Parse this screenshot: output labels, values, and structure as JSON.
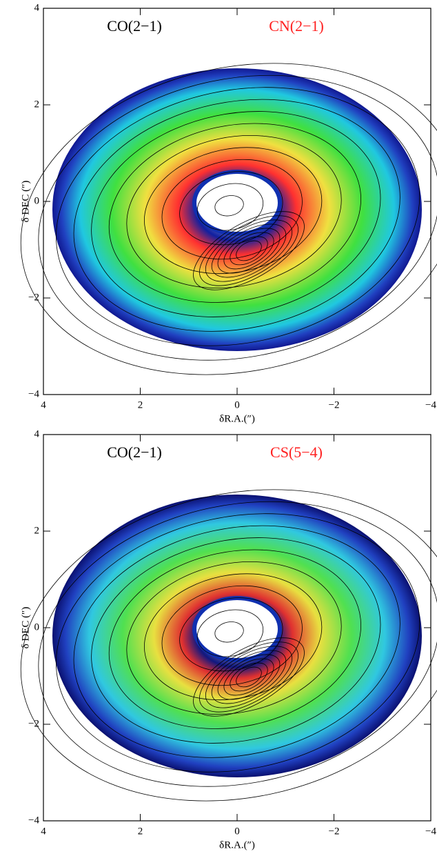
{
  "chart_data": [
    {
      "type": "map",
      "xlabel": "δR.A.(″)",
      "ylabel": "δ DEC (″)",
      "labels": [
        {
          "text": "CO(2−1)",
          "color": "#000000"
        },
        {
          "text": "CN(2−1)",
          "color": "#ff2020"
        }
      ],
      "xlim": [
        4,
        -4
      ],
      "ylim": [
        -4,
        4
      ],
      "xticks": [
        4,
        2,
        0,
        {
          "value": -2,
          "label": "−2"
        },
        {
          "value": -4,
          "label": "−4"
        }
      ],
      "yticks": [
        {
          "value": -4,
          "label": "−4"
        },
        {
          "value": -2,
          "label": "−2"
        },
        0,
        2,
        4
      ]
    },
    {
      "type": "map",
      "xlabel": "δR.A.(″)",
      "ylabel": "δ DEC (″)",
      "labels": [
        {
          "text": "CO(2−1)",
          "color": "#000000"
        },
        {
          "text": "CS(5−4)",
          "color": "#ff2020"
        }
      ],
      "xlim": [
        4,
        -4
      ],
      "ylim": [
        -4,
        4
      ],
      "xticks": [
        4,
        2,
        0,
        {
          "value": -2,
          "label": "−2"
        },
        {
          "value": -4,
          "label": "−4"
        }
      ],
      "yticks": [
        {
          "value": -4,
          "label": "−4"
        },
        {
          "value": -2,
          "label": "−2"
        },
        0,
        2,
        4
      ]
    }
  ]
}
